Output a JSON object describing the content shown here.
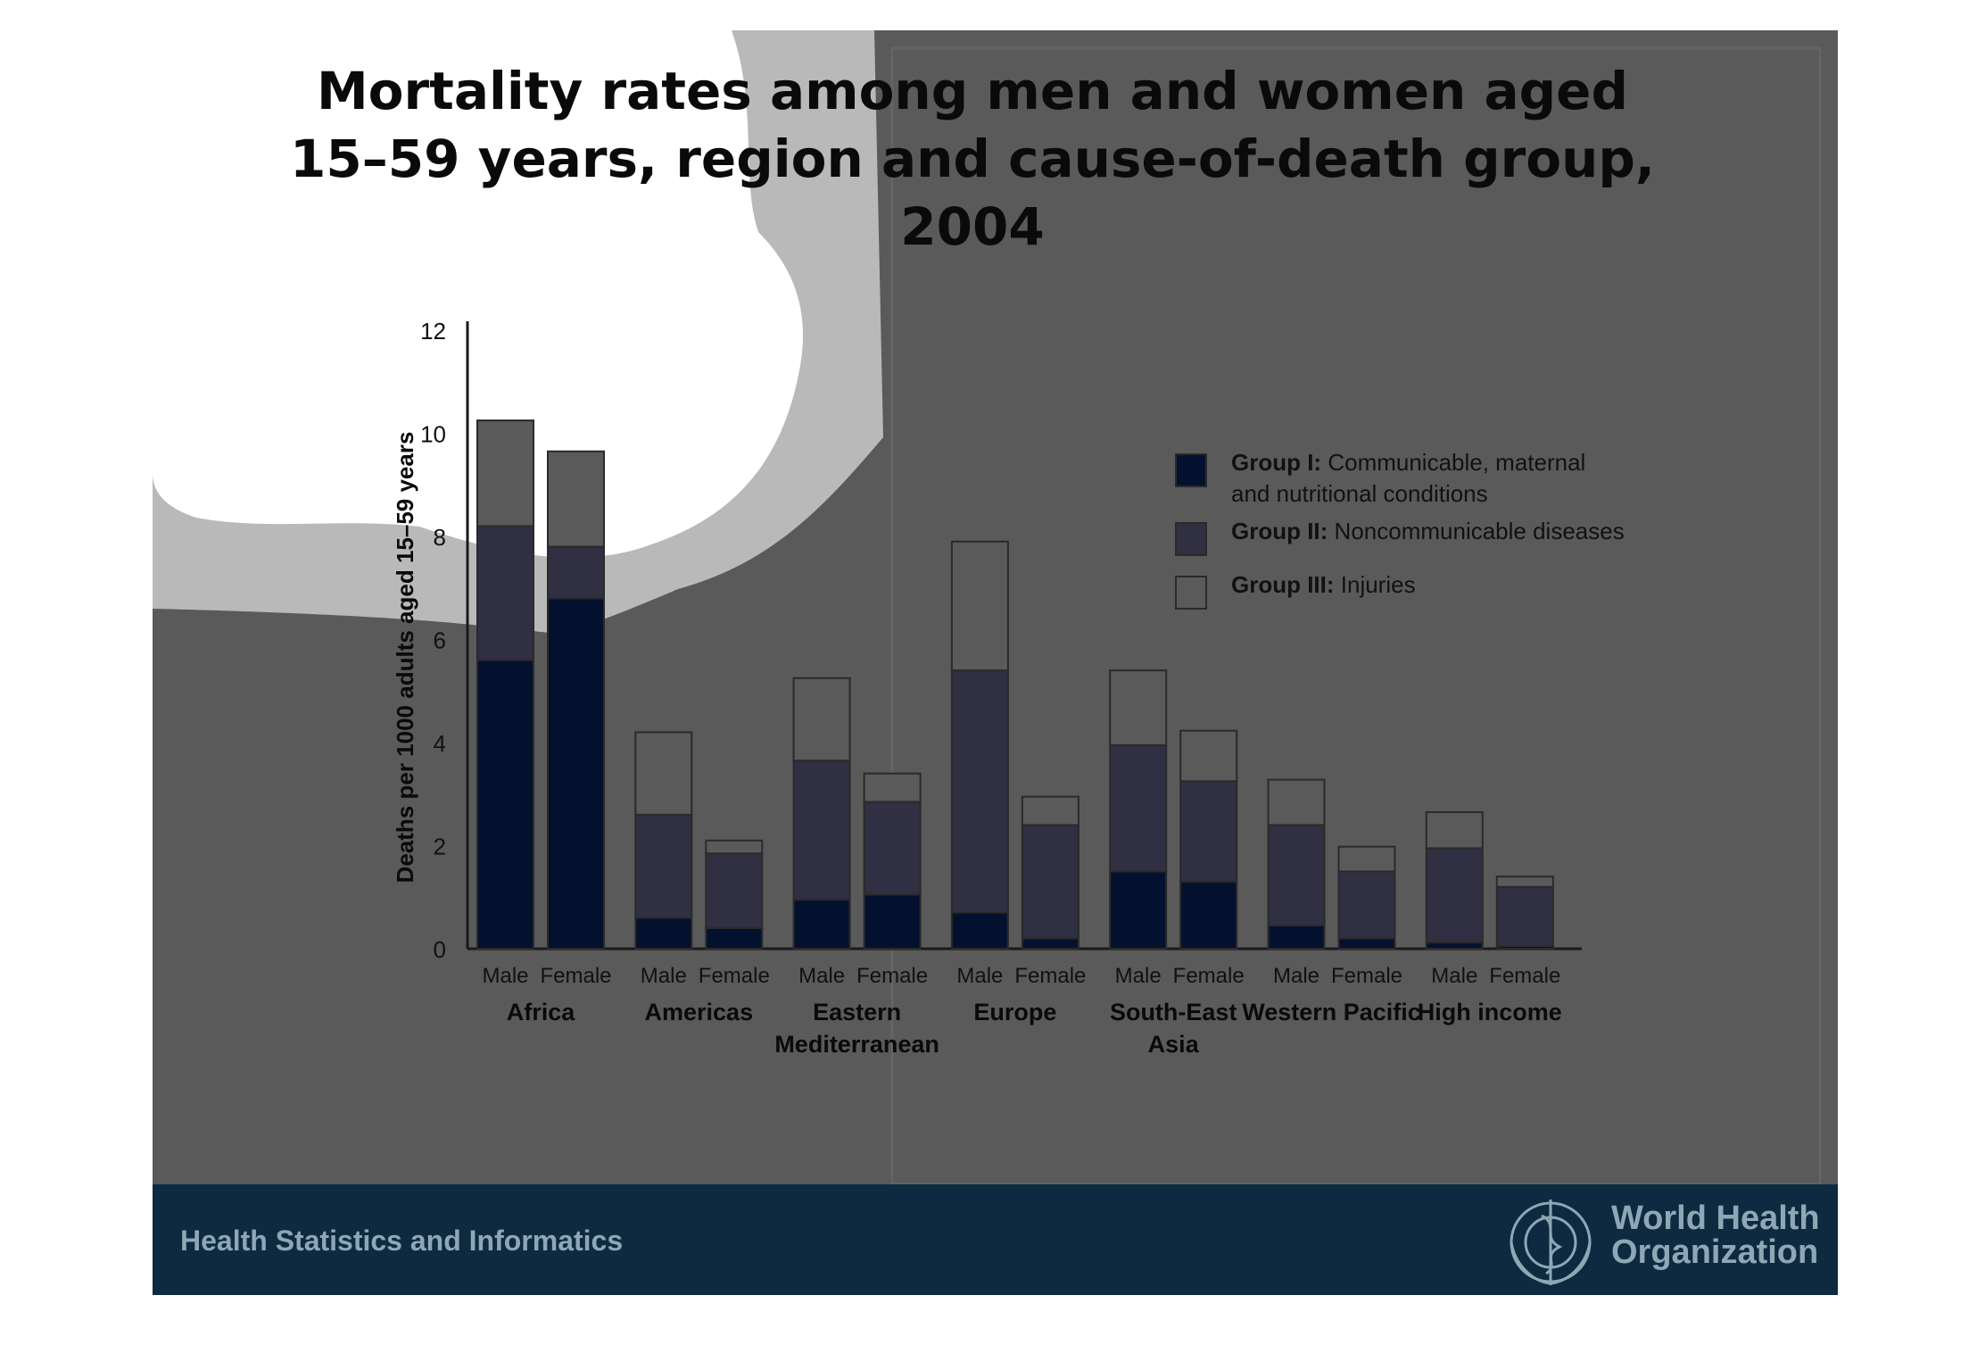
{
  "slide": {
    "title_lines": [
      "Mortality rates among men and women aged",
      "15–59 years, region and cause-of-death group,",
      "2004"
    ],
    "footer_text": "Health Statistics and Informatics",
    "org_name_lines": [
      "World Health",
      "Organization"
    ],
    "logo_icon": "who-emblem-icon"
  },
  "colors": {
    "slide_background": "#5a5a5a",
    "footer_band": "#0d2a40",
    "footer_text": "#8fa6b5",
    "group1": "#04112e",
    "group2": "#312f42",
    "group3_border": "#2a2a2a",
    "axis": "#1a1a1a"
  },
  "chart_data": {
    "type": "bar",
    "stacked": true,
    "ylabel": "Deaths per 1000 adults aged 15–59 years",
    "ylim": [
      0,
      12
    ],
    "yticks": [
      0,
      2,
      4,
      6,
      8,
      10,
      12
    ],
    "grid": false,
    "legend_position": "top-right",
    "groups": [
      "Africa",
      "Americas",
      "Eastern Mediterranean",
      "Europe",
      "South-East Asia",
      "Western Pacific",
      "High income"
    ],
    "group_label_lines": [
      [
        "Africa"
      ],
      [
        "Americas"
      ],
      [
        "Eastern",
        "Mediterranean"
      ],
      [
        "Europe"
      ],
      [
        "South-East",
        "Asia"
      ],
      [
        "Western Pacific"
      ],
      [
        "High income"
      ]
    ],
    "categories": [
      "Male",
      "Female",
      "Male",
      "Female",
      "Male",
      "Female",
      "Male",
      "Female",
      "Male",
      "Female",
      "Male",
      "Female",
      "Male",
      "Female"
    ],
    "series": [
      {
        "name": "Group I",
        "legend_bold": "Group I:",
        "legend_rest_lines": [
          "Communicable, maternal",
          "and nutritional conditions"
        ],
        "color": "#04112e",
        "values": [
          5.6,
          6.8,
          0.6,
          0.4,
          0.95,
          1.05,
          0.7,
          0.2,
          1.5,
          1.3,
          0.45,
          0.2,
          0.12,
          0.05
        ]
      },
      {
        "name": "Group II",
        "legend_bold": "Group II:",
        "legend_rest_lines": [
          "Noncommunicable diseases"
        ],
        "color": "#312f42",
        "values": [
          2.6,
          1.0,
          2.0,
          1.45,
          2.7,
          1.8,
          4.7,
          2.2,
          2.45,
          1.95,
          1.95,
          1.3,
          1.83,
          1.15
        ]
      },
      {
        "name": "Group III",
        "legend_bold": "Group III:",
        "legend_rest_lines": [
          "Injuries"
        ],
        "color": "#5a5a5a",
        "values": [
          2.05,
          1.85,
          1.6,
          0.25,
          1.6,
          0.55,
          2.5,
          0.55,
          1.45,
          0.98,
          0.88,
          0.48,
          0.7,
          0.2
        ]
      }
    ]
  }
}
